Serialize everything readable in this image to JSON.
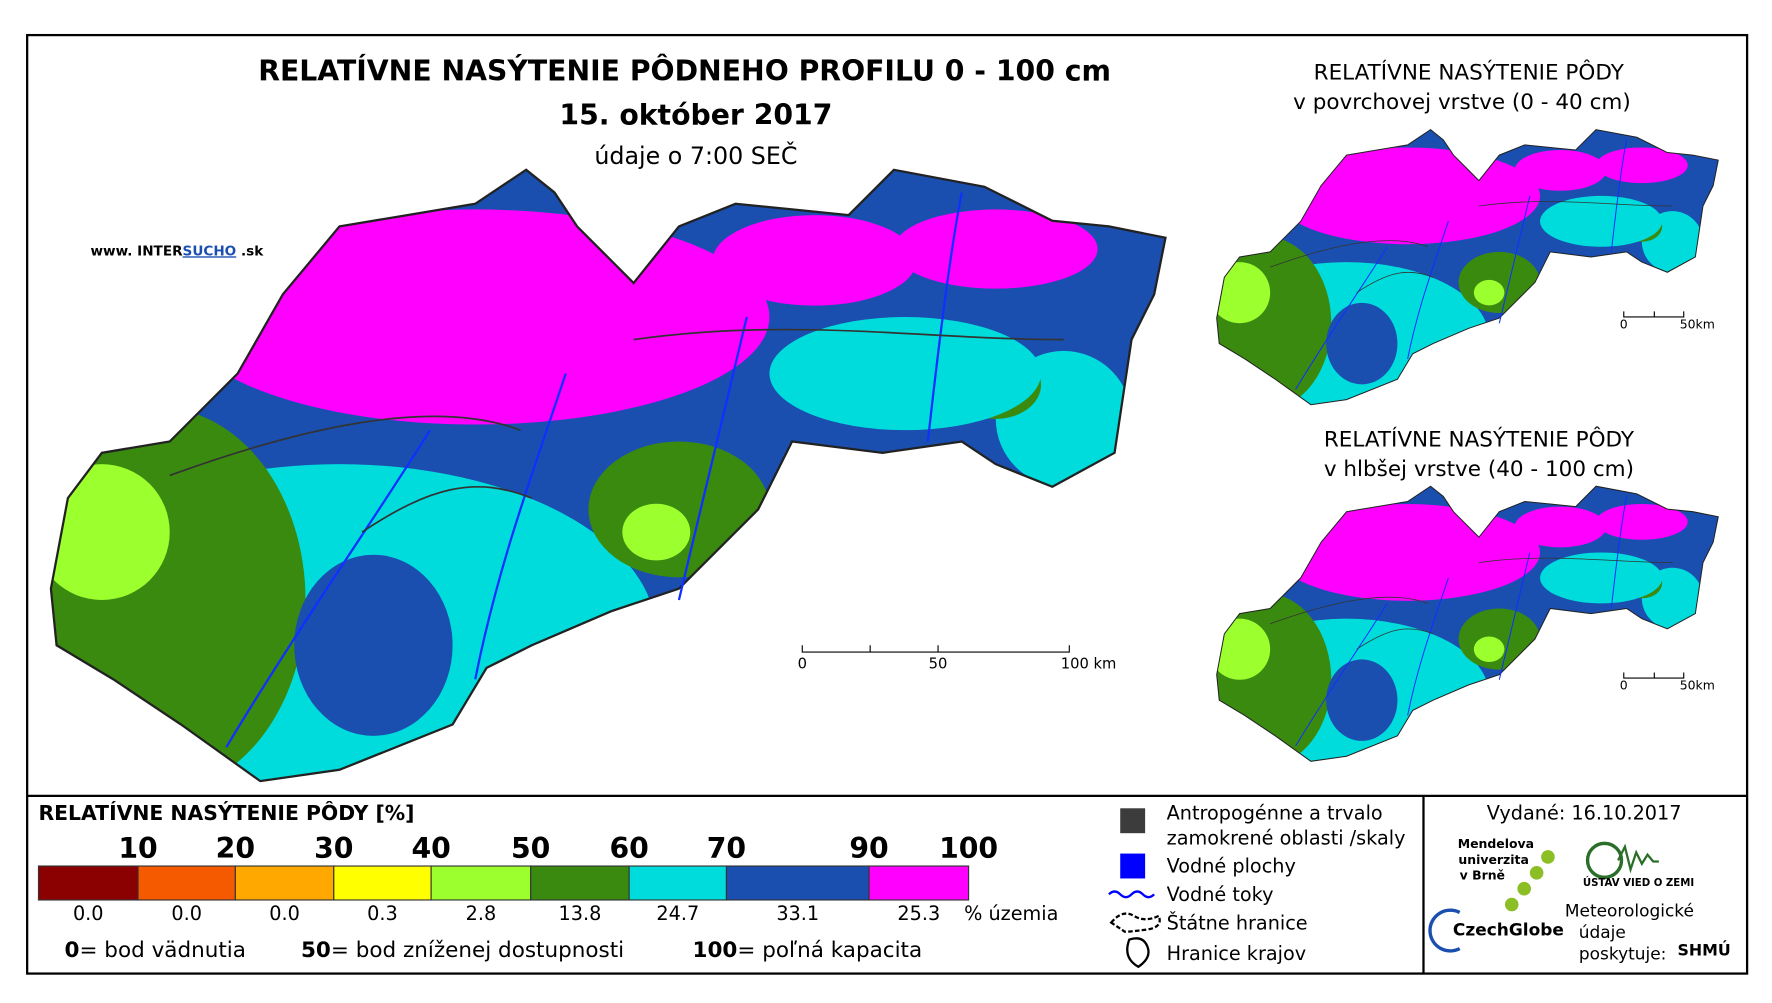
{
  "map": {
    "title": "RELATÍVNE NASÝTENIE PÔDNEHO PROFILU 0 - 100 cm",
    "date": "15. október 2017",
    "time_note": "údaje o 7:00 SEČ",
    "source_url": {
      "prefix": "www. INTER",
      "highlight": "SUCHO",
      "suffix": " .sk"
    },
    "scale_labels": [
      "0",
      "50",
      "100 km"
    ]
  },
  "insets": [
    {
      "title": "RELATÍVNE NASÝTENIE PÔDY",
      "subtitle": "v povrchovej vrstve (0 - 40 cm)",
      "scale_labels": [
        "0",
        "50km"
      ]
    },
    {
      "title": "RELATÍVNE NASÝTENIE PÔDY",
      "subtitle": "v hlbšej vrstve (40 - 100 cm)",
      "scale_labels": [
        "0",
        "50km"
      ]
    }
  ],
  "legend": {
    "title": "RELATÍVNE NASÝTENIE PÔDY [%]",
    "classes": [
      {
        "upper": "10",
        "color": "#8b0000",
        "share": "0.0"
      },
      {
        "upper": "20",
        "color": "#f55a00",
        "share": "0.0"
      },
      {
        "upper": "30",
        "color": "#ffa800",
        "share": "0.0"
      },
      {
        "upper": "40",
        "color": "#ffff00",
        "share": "0.3"
      },
      {
        "upper": "50",
        "color": "#9cff2e",
        "share": "2.8"
      },
      {
        "upper": "60",
        "color": "#3a8a10",
        "share": "13.8"
      },
      {
        "upper": "70",
        "color": "#00dcdc",
        "share": "24.7"
      },
      {
        "upper": "90",
        "color": "#1a4fb0",
        "share": "33.1"
      },
      {
        "upper": "100",
        "color": "#ff00ff",
        "share": "25.3"
      }
    ],
    "share_unit": "% územia",
    "notes": [
      {
        "key": "0",
        "text": "= bod vädnutia"
      },
      {
        "key": "50",
        "text": "= bod zníženej dostupnosti"
      },
      {
        "key": "100",
        "text": "= poľná kapacita"
      }
    ]
  },
  "symbols": [
    {
      "label": [
        "Antropogénne a trvalo",
        "zamokrené oblasti /skaly"
      ]
    },
    {
      "label": [
        "Vodné plochy"
      ]
    },
    {
      "label": [
        "Vodné toky"
      ]
    },
    {
      "label": [
        "Štátne hranice"
      ]
    },
    {
      "label": [
        "Hranice krajov"
      ]
    }
  ],
  "footer": {
    "issued": "Vydané: 16.10.2017",
    "mendel": [
      "Mendelova",
      "univerzita",
      "v Brně"
    ],
    "czechglobe": "CzechGlobe",
    "uvoz": "ÚSTAV VIED O ZEMI",
    "provider_note": [
      "Meteorologické",
      "údaje",
      "poskytuje:"
    ],
    "shmu": "SHMÚ"
  }
}
